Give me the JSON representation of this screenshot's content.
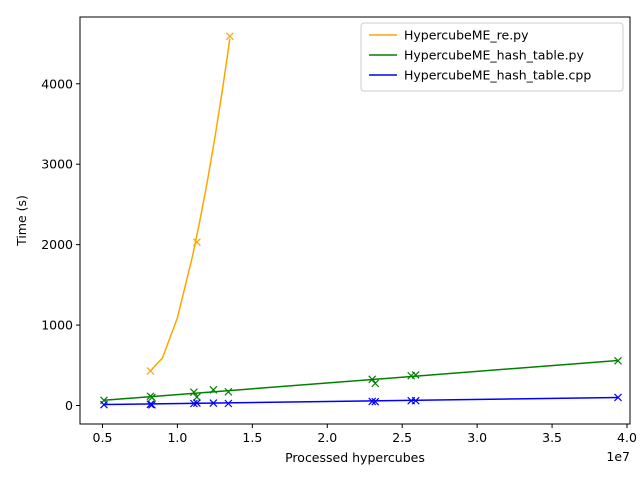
{
  "chart_data": {
    "type": "line",
    "title": "",
    "xlabel": "Processed hypercubes",
    "ylabel": "Time (s)",
    "x_offset_text": "1e7",
    "x_scale": 10000000,
    "xlim": [
      3.5,
      40.2
    ],
    "ylim": [
      -230,
      4830
    ],
    "x_ticks": [
      0.5,
      1.0,
      1.5,
      2.0,
      2.5,
      3.0,
      3.5,
      4.0
    ],
    "x_tick_labels": [
      "0.5",
      "1.0",
      "1.5",
      "2.0",
      "2.5",
      "3.0",
      "3.5",
      "4.0"
    ],
    "y_ticks": [
      0,
      1000,
      2000,
      3000,
      4000
    ],
    "y_tick_labels": [
      "0",
      "1000",
      "2000",
      "3000",
      "4000"
    ],
    "grid": false,
    "legend_position": "top-right",
    "series": [
      {
        "name": "HypercubeME_re.py",
        "color": "#ffa500",
        "points_x": [
          8.2,
          11.3,
          13.5
        ],
        "points_y": [
          430,
          2030,
          4590
        ],
        "fit_x": [
          8.2,
          9.0,
          10.0,
          11.0,
          11.5,
          12.0,
          12.5,
          13.0,
          13.5
        ],
        "fit_y": [
          430,
          590,
          1090,
          1850,
          2300,
          2790,
          3330,
          3920,
          4560
        ]
      },
      {
        "name": "HypercubeME_hash_table.py",
        "color": "#008000",
        "points_x": [
          5.1,
          8.2,
          8.3,
          11.1,
          11.3,
          12.4,
          13.4,
          23.0,
          23.2,
          25.6,
          25.9,
          39.4
        ],
        "points_y": [
          65,
          115,
          100,
          165,
          105,
          195,
          170,
          325,
          275,
          370,
          380,
          555
        ],
        "fit_x": [
          5.1,
          39.4
        ],
        "fit_y": [
          65,
          560
        ]
      },
      {
        "name": "HypercubeME_hash_table.cpp",
        "color": "#0000ff",
        "points_x": [
          5.1,
          8.2,
          8.3,
          11.1,
          11.3,
          12.4,
          13.4,
          23.0,
          23.2,
          25.6,
          25.9,
          39.4
        ],
        "points_y": [
          10,
          15,
          8,
          25,
          30,
          30,
          25,
          50,
          48,
          60,
          60,
          100
        ],
        "fit_x": [
          5.1,
          39.4
        ],
        "fit_y": [
          12,
          100
        ]
      }
    ]
  }
}
